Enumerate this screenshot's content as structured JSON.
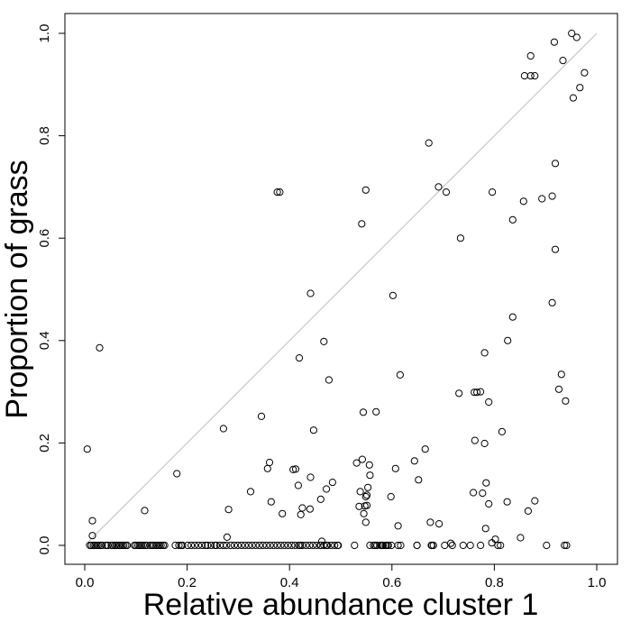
{
  "chart_data": {
    "type": "scatter",
    "title": "",
    "xlabel": "Relative abundance cluster 1",
    "ylabel": "Proportion of grass",
    "xlim": [
      0,
      1
    ],
    "ylim": [
      0,
      1
    ],
    "x_ticks": [
      "0.0",
      "0.2",
      "0.4",
      "0.6",
      "0.8",
      "1.0"
    ],
    "y_ticks": [
      "0.0",
      "0.2",
      "0.4",
      "0.6",
      "0.8",
      "1.0"
    ],
    "grid": false,
    "legend": "none",
    "point_style": "open circle",
    "point_color": "#000000",
    "reference_line": {
      "slope": 1,
      "intercept": 0,
      "color": "#bfbfbf"
    },
    "series": [
      {
        "x": [
          0.005,
          0.029,
          0.015,
          0.015,
          0.117,
          0.18,
          0.376,
          0.271,
          0.324,
          0.345,
          0.357,
          0.361,
          0.364,
          0.281,
          0.386,
          0.407,
          0.412,
          0.417,
          0.422,
          0.425,
          0.441,
          0.44,
          0.447,
          0.461,
          0.467,
          0.472,
          0.477,
          0.484,
          0.531,
          0.536,
          0.538,
          0.542,
          0.545,
          0.549,
          0.551,
          0.553,
          0.556,
          0.557,
          0.544,
          0.547,
          0.549,
          0.551,
          0.598,
          0.607,
          0.612,
          0.616,
          0.644,
          0.652,
          0.665,
          0.675,
          0.692,
          0.706,
          0.715,
          0.739,
          0.761,
          0.773,
          0.781,
          0.789,
          0.802,
          0.815,
          0.826,
          0.836,
          0.851,
          0.871,
          0.879,
          0.893,
          0.913,
          0.919,
          0.926,
          0.931,
          0.939,
          0.951,
          0.954,
          0.961,
          0.967,
          0.976,
          0.934,
          0.941,
          0.937,
          0.859,
          0.866,
          0.871,
          0.879,
          0.913,
          0.917,
          0.919,
          0.902,
          0.549,
          0.381,
          0.441,
          0.419,
          0.472,
          0.463,
          0.541,
          0.569,
          0.602,
          0.617,
          0.649,
          0.672,
          0.691,
          0.734,
          0.649,
          0.766,
          0.759,
          0.781,
          0.784,
          0.812,
          0.825,
          0.836,
          0.796,
          0.777,
          0.762,
          0.731,
          0.783,
          0.789,
          0.795,
          0.857,
          0.807,
          0.773,
          0.753,
          0.581,
          0.567,
          0.703,
          0.718,
          0.677,
          0.612,
          0.277,
          0.421,
          0.461,
          0.494,
          0.527,
          0.58,
          0.583,
          0.587,
          0.589,
          0.593,
          0.678,
          0.681
        ],
        "y": [
          0.188,
          0.386,
          0.048,
          0.019,
          0.068,
          0.14,
          0.69,
          0.228,
          0.105,
          0.252,
          0.15,
          0.162,
          0.085,
          0.07,
          0.062,
          0.148,
          0.149,
          0.117,
          0.06,
          0.073,
          0.133,
          0.071,
          0.225,
          0.09,
          0.398,
          0.11,
          0.323,
          0.123,
          0.161,
          0.076,
          0.105,
          0.168,
          0.062,
          0.045,
          0.098,
          0.113,
          0.157,
          0.137,
          0.26,
          0.077,
          0.095,
          0.078,
          0.095,
          0.15,
          0.038,
          0.333,
          0.165,
          0.128,
          0.188,
          0.045,
          0.042,
          0.69,
          0.004,
          0.0,
          0.299,
          0.3,
          0.376,
          0.28,
          0.012,
          0.222,
          0.4,
          0.446,
          0.015,
          0.956,
          0.917,
          0.677,
          0.682,
          0.578,
          0.305,
          0.334,
          0.282,
          1.0,
          0.874,
          0.992,
          0.894,
          0.923,
          0.947,
          0.0,
          0.0,
          0.917,
          0.067,
          0.917,
          0.087,
          0.474,
          0.983,
          0.746,
          0.0,
          0.694,
          0.69,
          0.492,
          0.366,
          0.0,
          0.008,
          0.628,
          0.261,
          0.488,
          0.0,
          0.0,
          0.786,
          0.7,
          0.6,
          0.0,
          0.299,
          0.103,
          0.199,
          0.122,
          0.0,
          0.085,
          0.636,
          0.69,
          0.102,
          0.205,
          0.297,
          0.033,
          0.081,
          0.005,
          0.672,
          0.0,
          0.0,
          0.0,
          0.0,
          0.0,
          0.0,
          0.0,
          0.0,
          0.0,
          0.0,
          0.0,
          0.0,
          0.0,
          0.0,
          0.0,
          0.0,
          0.0,
          0.0,
          0.0,
          0.0,
          0.0
        ]
      },
      {
        "x": [
          0.01,
          0.013,
          0.017,
          0.02,
          0.024,
          0.027,
          0.031,
          0.034,
          0.041,
          0.045,
          0.052,
          0.055,
          0.059,
          0.062,
          0.066,
          0.069,
          0.073,
          0.076,
          0.08,
          0.083,
          0.097,
          0.1,
          0.104,
          0.107,
          0.111,
          0.114,
          0.118,
          0.121,
          0.128,
          0.132,
          0.135,
          0.139,
          0.142,
          0.146,
          0.149,
          0.153,
          0.156,
          0.177,
          0.184,
          0.188,
          0.191,
          0.201,
          0.208,
          0.215,
          0.222,
          0.229,
          0.236,
          0.24,
          0.247,
          0.254,
          0.257,
          0.264,
          0.271,
          0.278,
          0.285,
          0.292,
          0.299,
          0.306,
          0.313,
          0.32,
          0.327,
          0.334,
          0.341,
          0.348,
          0.355,
          0.362,
          0.369,
          0.376,
          0.383,
          0.39,
          0.397,
          0.404,
          0.411,
          0.418,
          0.425,
          0.432,
          0.439,
          0.446,
          0.453,
          0.46,
          0.467,
          0.474,
          0.481,
          0.488,
          0.495,
          0.557,
          0.564,
          0.571,
          0.578,
          0.592,
          0.599
        ],
        "y": [
          0.0,
          0.0,
          0.0,
          0.0,
          0.0,
          0.0,
          0.0,
          0.0,
          0.0,
          0.0,
          0.0,
          0.0,
          0.0,
          0.0,
          0.0,
          0.0,
          0.0,
          0.0,
          0.0,
          0.0,
          0.0,
          0.0,
          0.0,
          0.0,
          0.0,
          0.0,
          0.0,
          0.0,
          0.0,
          0.0,
          0.0,
          0.0,
          0.0,
          0.0,
          0.0,
          0.0,
          0.0,
          0.0,
          0.0,
          0.0,
          0.0,
          0.0,
          0.0,
          0.0,
          0.0,
          0.0,
          0.0,
          0.0,
          0.0,
          0.0,
          0.0,
          0.0,
          0.0,
          0.016,
          0.0,
          0.0,
          0.0,
          0.0,
          0.0,
          0.0,
          0.0,
          0.0,
          0.0,
          0.0,
          0.0,
          0.0,
          0.0,
          0.0,
          0.0,
          0.0,
          0.0,
          0.0,
          0.0,
          0.0,
          0.0,
          0.0,
          0.0,
          0.0,
          0.0,
          0.0,
          0.0,
          0.0,
          0.0,
          0.0,
          0.0,
          0.0,
          0.0,
          0.0,
          0.0,
          0.0,
          0.0
        ]
      }
    ]
  }
}
